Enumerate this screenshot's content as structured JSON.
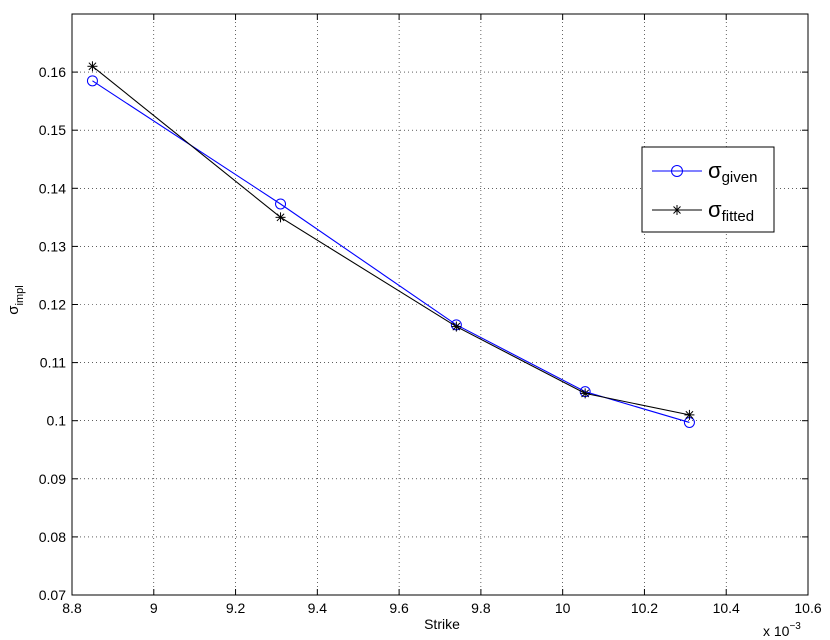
{
  "chart_data": {
    "type": "line",
    "x": [
      8.85,
      9.31,
      9.74,
      10.055,
      10.31
    ],
    "series": [
      {
        "name_main": "σ",
        "name_sub": "given",
        "color": "#0000ff",
        "marker": "circle",
        "values": [
          0.1585,
          0.1373,
          0.1165,
          0.105,
          0.0997
        ]
      },
      {
        "name_main": "σ",
        "name_sub": "fitted",
        "color": "#000000",
        "marker": "star",
        "values": [
          0.161,
          0.135,
          0.1162,
          0.1047,
          0.101
        ]
      }
    ],
    "xlim": [
      8.8,
      10.6
    ],
    "ylim": [
      0.07,
      0.17
    ],
    "x_ticks": [
      8.8,
      9.0,
      9.2,
      9.4,
      9.6,
      9.8,
      10.0,
      10.2,
      10.4,
      10.6
    ],
    "x_tick_labels": [
      "8.8",
      "9",
      "9.2",
      "9.4",
      "9.6",
      "9.8",
      "10",
      "10.2",
      "10.4",
      "10.6"
    ],
    "y_ticks": [
      0.07,
      0.08,
      0.09,
      0.1,
      0.11,
      0.12,
      0.13,
      0.14,
      0.15,
      0.16
    ],
    "y_tick_labels": [
      "0.07",
      "0.08",
      "0.09",
      "0.1",
      "0.11",
      "0.12",
      "0.13",
      "0.14",
      "0.15",
      "0.16"
    ],
    "xlabel": "Strike",
    "ylabel_main": "σ",
    "ylabel_sub": "impl",
    "x_exponent_base": "x 10",
    "x_exponent_power": "−3",
    "grid": true,
    "legend_position": "right"
  }
}
